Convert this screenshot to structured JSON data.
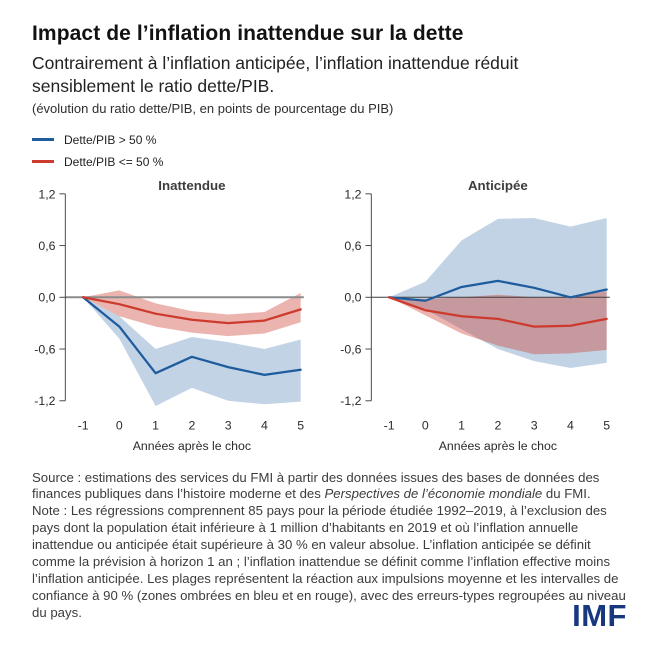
{
  "header": {
    "title": "Impact de l’inflation inattendue sur la dette",
    "subtitle": "Contrairement à l’inflation anticipée, l’inflation inattendue réduit sensiblement le ratio dette/PIB.",
    "spec": "(évolution du ratio dette/PIB, en points de pourcentage du PIB)"
  },
  "legend": [
    {
      "label": "Dette/PIB > 50 %",
      "color": "#1e5c9e"
    },
    {
      "label": "Dette/PIB <= 50 %",
      "color": "#cd3a2e"
    }
  ],
  "chart_data": {
    "type": "line",
    "x": [
      -1,
      0,
      1,
      2,
      3,
      4,
      5
    ],
    "xlabel": "Années après le choc",
    "ylim": [
      -1.2,
      1.2
    ],
    "ytick_values": [
      1.2,
      0.6,
      0,
      -0.6,
      -1.2
    ],
    "ytick_labels": [
      "1,2",
      "0,6",
      "0,0",
      "-0,6",
      "-1,2"
    ],
    "xtick_labels": [
      "-1",
      "0",
      "1",
      "2",
      "3",
      "4",
      "5"
    ],
    "grid": false,
    "legend_position": "top-left",
    "panels": [
      {
        "title": "Inattendue",
        "zero_line": {
          "color": "#8c8c8c",
          "width": 2
        },
        "series": [
          {
            "name": "Dette/PIB > 50 %",
            "color": "#1e5c9e",
            "band_color": "rgba(30,92,158,0.27)",
            "mean": [
              0,
              -0.34,
              -0.88,
              -0.69,
              -0.81,
              -0.9,
              -0.84
            ],
            "upper": [
              0,
              -0.22,
              -0.6,
              -0.46,
              -0.52,
              -0.6,
              -0.49
            ],
            "lower": [
              0,
              -0.48,
              -1.26,
              -1.05,
              -1.2,
              -1.24,
              -1.21
            ]
          },
          {
            "name": "Dette/PIB <= 50 %",
            "color": "#cd3a2e",
            "band_color": "rgba(205,58,46,0.38)",
            "mean": [
              0,
              -0.08,
              -0.19,
              -0.26,
              -0.3,
              -0.27,
              -0.14
            ],
            "upper": [
              0,
              0.08,
              -0.07,
              -0.16,
              -0.2,
              -0.17,
              0.05
            ],
            "lower": [
              0,
              -0.22,
              -0.34,
              -0.41,
              -0.45,
              -0.42,
              -0.29
            ]
          }
        ]
      },
      {
        "title": "Anticipée",
        "zero_line": {
          "color": "#3f3f3f",
          "width": 1
        },
        "series": [
          {
            "name": "Dette/PIB > 50 %",
            "color": "#1e5c9e",
            "band_color": "rgba(30,92,158,0.27)",
            "mean": [
              0,
              -0.04,
              0.12,
              0.19,
              0.11,
              0.0,
              0.09
            ],
            "upper": [
              0,
              0.18,
              0.66,
              0.91,
              0.92,
              0.82,
              0.92
            ],
            "lower": [
              0,
              -0.14,
              -0.37,
              -0.6,
              -0.74,
              -0.82,
              -0.76
            ]
          },
          {
            "name": "Dette/PIB <= 50 %",
            "color": "#cd3a2e",
            "band_color": "rgba(205,58,46,0.38)",
            "mean": [
              0,
              -0.15,
              -0.22,
              -0.25,
              -0.34,
              -0.33,
              -0.25
            ],
            "upper": [
              0,
              -0.02,
              0.0,
              0.03,
              0.0,
              0.0,
              0.07
            ],
            "lower": [
              0,
              -0.21,
              -0.42,
              -0.56,
              -0.66,
              -0.65,
              -0.61
            ]
          }
        ]
      }
    ]
  },
  "footer": {
    "source_prefix": "Source : estimations des services du FMI à partir des données issues des bases de données des finances publiques dans l’histoire moderne et des ",
    "source_italic": "Perspectives de l’économie mondiale",
    "source_suffix": " du FMI.",
    "note": "Note : Les régressions comprennent 85 pays pour la période étudiée 1992–2019, à l’exclusion des pays dont la population était inférieure à 1 million d’habitants en 2019 et où l’inflation annuelle inattendue ou anticipée était supérieure à 30 % en valeur absolue. L’inflation anticipée se définit comme la prévision à horizon 1 an ; l’inflation inattendue se définit comme l’inflation effective moins l’inflation anticipée. Les plages représentent la réaction aux impulsions moyenne et les intervalles de confiance à 90 % (zones ombrées en bleu et en rouge), avec des erreurs-types regroupées au niveau du pays."
  },
  "logo": {
    "text": "IMF"
  }
}
